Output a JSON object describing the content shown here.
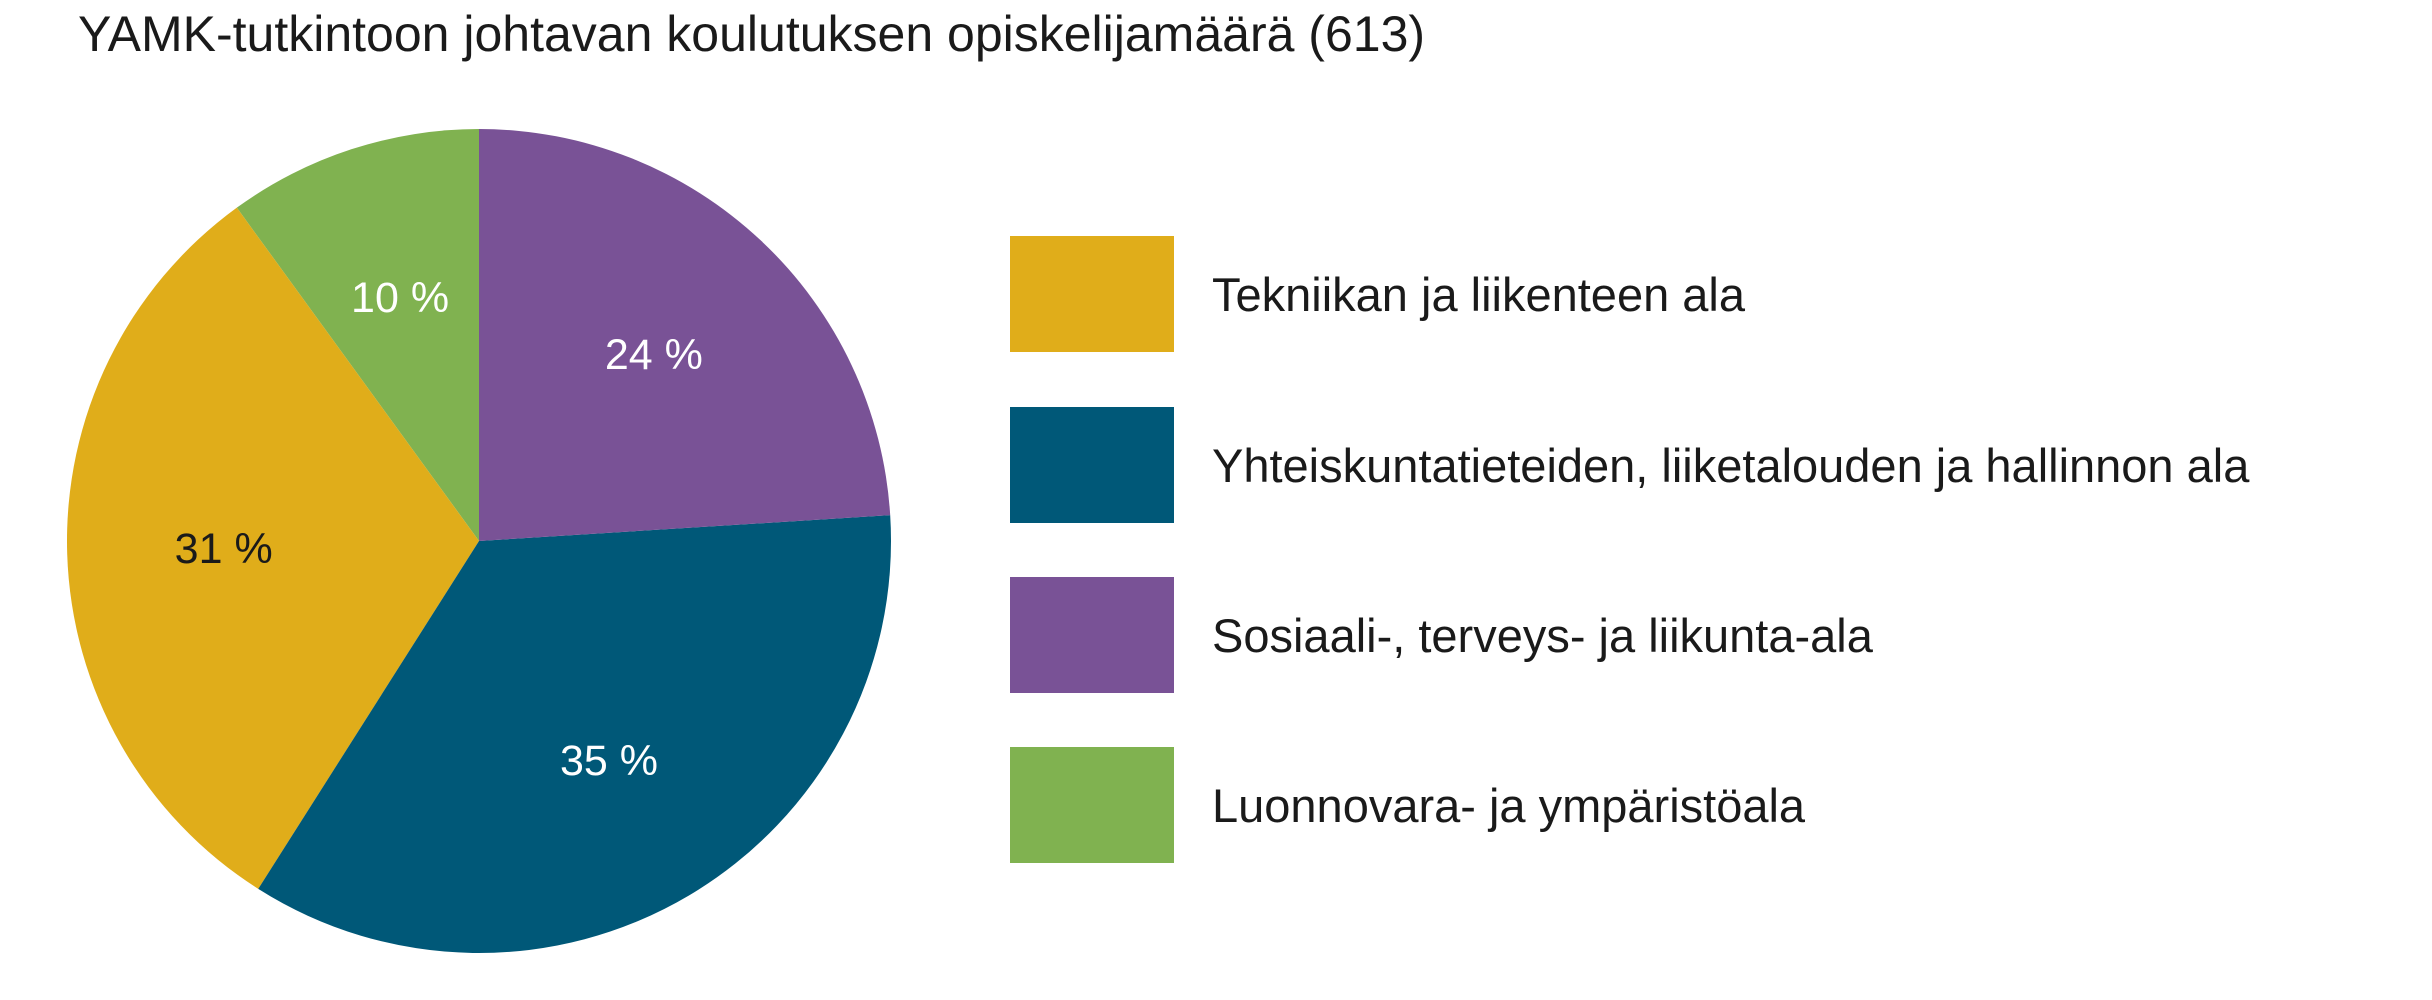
{
  "chart_data": {
    "type": "pie",
    "title": "YAMK-tutkintoon johtavan koulutuksen opiskelijamäärä (613)",
    "start_angle_deg": 0,
    "direction": "counterclockwise",
    "slices": [
      {
        "label": "Luonnovara- ja ympäristöala",
        "value": 10,
        "value_label": "10 %",
        "color": "#80b250",
        "label_color": "#ffffff"
      },
      {
        "label": "Tekniikan ja liikenteen ala",
        "value": 31,
        "value_label": "31 %",
        "color": "#e0ad1a",
        "label_color": "#1a1a1a"
      },
      {
        "label": "Yhteiskuntatieteiden, liiketalouden ja hallinnon ala",
        "value": 35,
        "value_label": "35 %",
        "color": "#005878",
        "label_color": "#ffffff"
      },
      {
        "label": "Sosiaali-, terveys- ja liikunta-ala",
        "value": 24,
        "value_label": "24 %",
        "color": "#795296",
        "label_color": "#ffffff"
      }
    ],
    "legend": {
      "position": "right",
      "items": [
        {
          "label": "Tekniikan ja liikenteen ala",
          "color": "#e0ad1a"
        },
        {
          "label": "Yhteiskuntatieteiden, liiketalouden ja hallinnon ala",
          "color": "#005878"
        },
        {
          "label": "Sosiaali-, terveys- ja liikunta-ala",
          "color": "#795296"
        },
        {
          "label": "Luonnovara- ja ympäristöala",
          "color": "#80b250"
        }
      ]
    }
  }
}
